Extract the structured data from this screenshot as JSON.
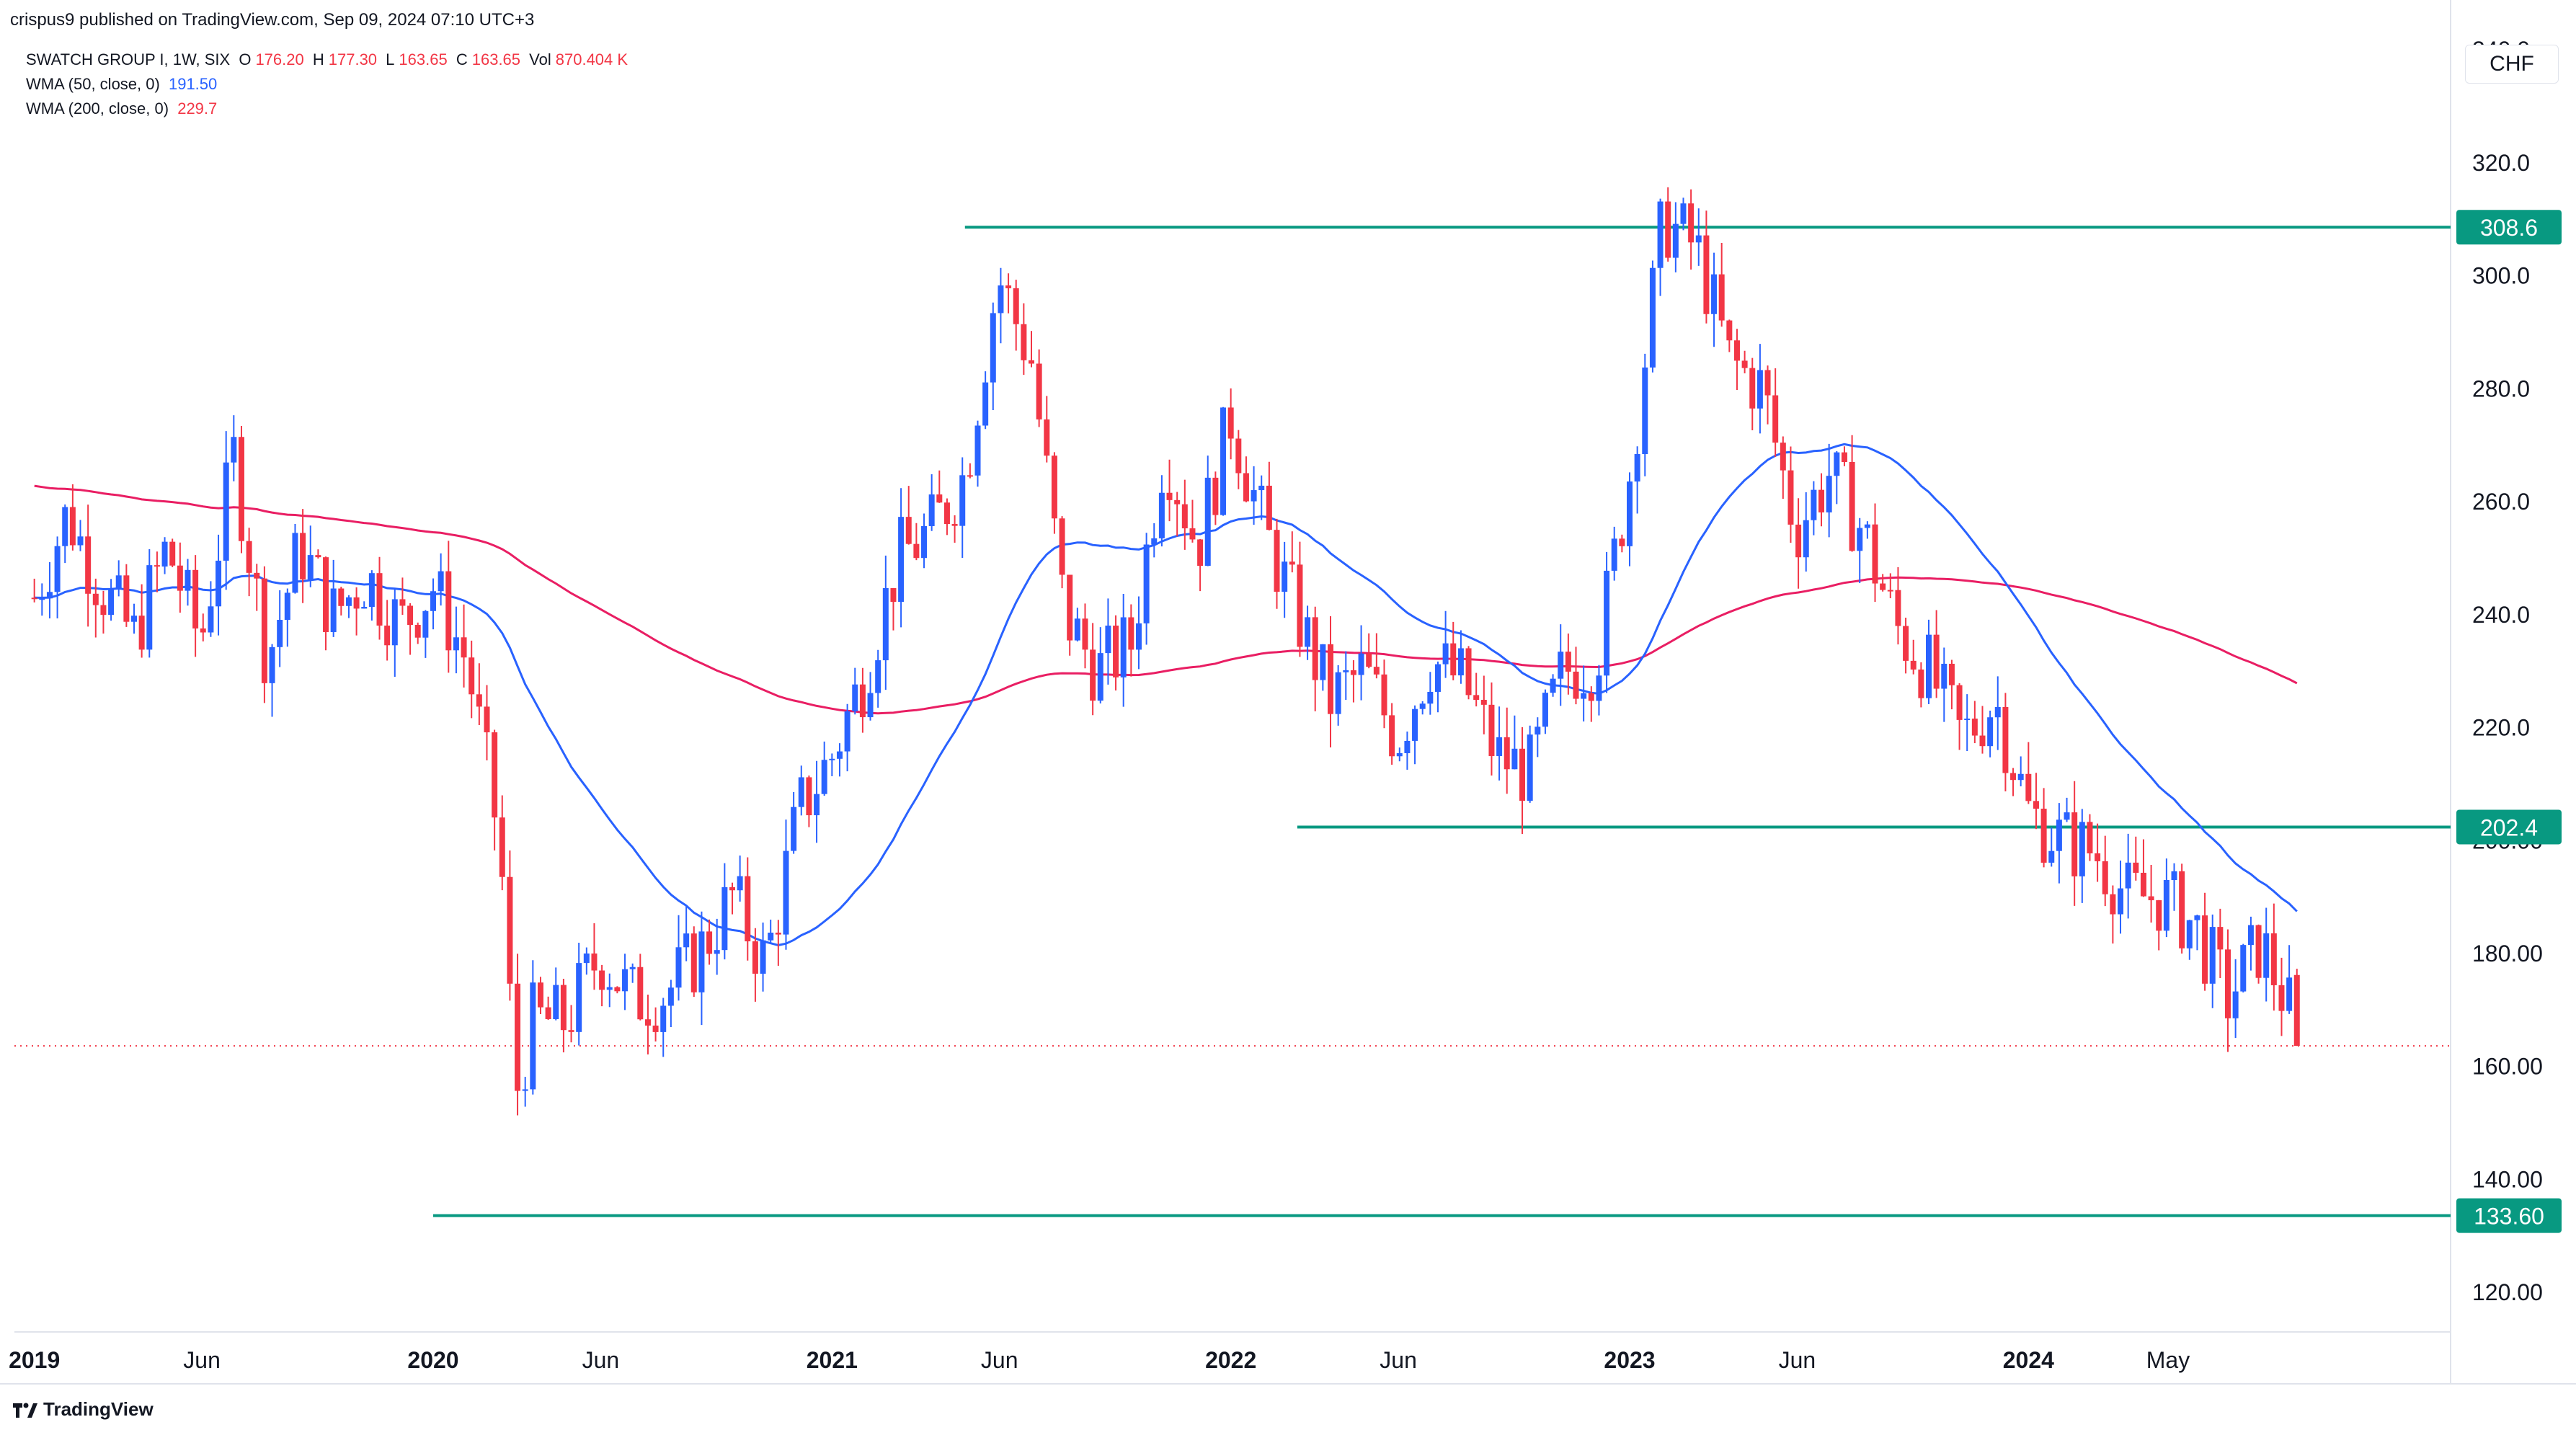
{
  "header": {
    "published": "crispus9 published on TradingView.com, Sep 09, 2024 07:10 UTC+3"
  },
  "legend": {
    "symbol": "SWATCH GROUP I, 1W, SIX",
    "o_label": "O",
    "o_value": "176.20",
    "h_label": "H",
    "h_value": "177.30",
    "l_label": "L",
    "l_value": "163.65",
    "c_label": "C",
    "c_value": "163.65",
    "vol_label": "Vol",
    "vol_value": "870.404 K",
    "wma50_label": "WMA (50, close, 0)",
    "wma50_value": "191.50",
    "wma200_label": "WMA (200, close, 0)",
    "wma200_value": "229.7"
  },
  "currency": "CHF",
  "footer": {
    "brand": "TradingView"
  },
  "colors": {
    "up": "#2962ff",
    "down": "#f23645",
    "wma50": "#2962ff",
    "wma200": "#e91e63",
    "level": "#089981",
    "text": "#131722",
    "grid": "#e0e3eb"
  },
  "chart_data": {
    "type": "candlestick",
    "ylim": [
      113,
      345
    ],
    "y_ticks": [
      "120.00",
      "140.00",
      "160.00",
      "180.00",
      "200.00",
      "220.0",
      "240.0",
      "260.0",
      "280.0",
      "300.0",
      "320.0",
      "340.0"
    ],
    "x_ticks": [
      "2019",
      "Jun",
      "2020",
      "Jun",
      "2021",
      "Jun",
      "2022",
      "Jun",
      "2023",
      "Jun",
      "2024",
      "May"
    ],
    "levels": [
      {
        "label": "308.6",
        "value": 308.6,
        "from": "2021-05"
      },
      {
        "label": "202.4",
        "value": 202.4,
        "from": "2022-03"
      },
      {
        "label": "133.60",
        "value": 133.6,
        "from": "2020-01"
      }
    ],
    "last_price": 163.65,
    "path_points": [
      [
        "2019-01",
        243
      ],
      [
        "2019-02",
        258
      ],
      [
        "2019-03",
        245
      ],
      [
        "2019-04",
        236
      ],
      [
        "2019-05",
        252
      ],
      [
        "2019-06",
        235
      ],
      [
        "2019-07",
        268
      ],
      [
        "2019-08",
        232
      ],
      [
        "2019-09",
        252
      ],
      [
        "2019-10",
        240
      ],
      [
        "2019-11",
        247
      ],
      [
        "2019-12",
        238
      ],
      [
        "2020-01",
        245
      ],
      [
        "2020-02",
        232
      ],
      [
        "2020-03",
        200
      ],
      [
        "2020-03b",
        155
      ],
      [
        "2020-04",
        168
      ],
      [
        "2020-05",
        168
      ],
      [
        "2020-06",
        180
      ],
      [
        "2020-07",
        172
      ],
      [
        "2020-08",
        173
      ],
      [
        "2020-09",
        180
      ],
      [
        "2020-10",
        190
      ],
      [
        "2020-11",
        178
      ],
      [
        "2020-12",
        205
      ],
      [
        "2021-01",
        215
      ],
      [
        "2021-02",
        230
      ],
      [
        "2021-03",
        250
      ],
      [
        "2021-04",
        255
      ],
      [
        "2021-05",
        265
      ],
      [
        "2021-06",
        300
      ],
      [
        "2021-07",
        285
      ],
      [
        "2021-08",
        240
      ],
      [
        "2021-09",
        230
      ],
      [
        "2021-10",
        235
      ],
      [
        "2021-11",
        270
      ],
      [
        "2021-12",
        252
      ],
      [
        "2022-01",
        275
      ],
      [
        "2022-02",
        255
      ],
      [
        "2022-03",
        240
      ],
      [
        "2022-04",
        225
      ],
      [
        "2022-05",
        230
      ],
      [
        "2022-06",
        218
      ],
      [
        "2022-07",
        232
      ],
      [
        "2022-08",
        228
      ],
      [
        "2022-09",
        215
      ],
      [
        "2022-10",
        212
      ],
      [
        "2022-11",
        230
      ],
      [
        "2022-12",
        232
      ],
      [
        "2023-01",
        265
      ],
      [
        "2023-02",
        310
      ],
      [
        "2023-03",
        305
      ],
      [
        "2023-04",
        285
      ],
      [
        "2023-05",
        280
      ],
      [
        "2023-06",
        255
      ],
      [
        "2023-07",
        265
      ],
      [
        "2023-08",
        255
      ],
      [
        "2023-09",
        238
      ],
      [
        "2023-10",
        230
      ],
      [
        "2023-11",
        218
      ],
      [
        "2023-12",
        225
      ],
      [
        "2024-01",
        205
      ],
      [
        "2024-02",
        200
      ],
      [
        "2024-03",
        198
      ],
      [
        "2024-04",
        190
      ],
      [
        "2024-05",
        190
      ],
      [
        "2024-06",
        185
      ],
      [
        "2024-07",
        172
      ],
      [
        "2024-08",
        182
      ],
      [
        "2024-09",
        163.65
      ]
    ],
    "series": [
      {
        "name": "WMA (50, close, 0)",
        "last": 191.5
      },
      {
        "name": "WMA (200, close, 0)",
        "last": 229.7
      }
    ]
  }
}
